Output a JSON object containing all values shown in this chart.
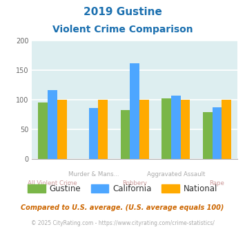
{
  "title_line1": "2019 Gustine",
  "title_line2": "Violent Crime Comparison",
  "x_labels_top": [
    "",
    "Murder & Mans...",
    "",
    "Aggravated Assault",
    ""
  ],
  "x_labels_bottom": [
    "All Violent Crime",
    "",
    "Robbery",
    "",
    "Rape"
  ],
  "gustine_values": [
    95,
    0,
    83,
    103,
    79
  ],
  "california_values": [
    117,
    86,
    162,
    107,
    87
  ],
  "national_values": [
    100,
    100,
    100,
    100,
    100
  ],
  "gustine_color": "#7ab648",
  "california_color": "#4da6ff",
  "national_color": "#ffaa00",
  "ylim": [
    0,
    200
  ],
  "yticks": [
    0,
    50,
    100,
    150,
    200
  ],
  "background_color": "#ddeef0",
  "grid_color": "#ffffff",
  "title_color": "#1a6faf",
  "xlabel_top_color": "#aaaaaa",
  "xlabel_bottom_color": "#cc9999",
  "legend_labels": [
    "Gustine",
    "California",
    "National"
  ],
  "legend_text_color": "#333333",
  "footnote": "Compared to U.S. average. (U.S. average equals 100)",
  "copyright": "© 2025 CityRating.com - https://www.cityrating.com/crime-statistics/",
  "footnote_color": "#cc6600",
  "copyright_color": "#aaaaaa"
}
